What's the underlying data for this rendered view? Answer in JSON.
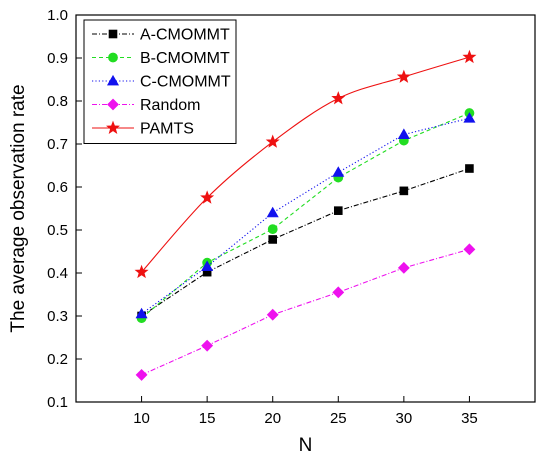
{
  "chart_data": {
    "type": "line",
    "title": "",
    "xlabel": "N",
    "ylabel": "The average observation rate",
    "x": [
      10,
      15,
      20,
      25,
      30,
      35
    ],
    "xlim": [
      5,
      40
    ],
    "ylim": [
      0.1,
      1.0
    ],
    "xticks": [
      10,
      15,
      20,
      25,
      30,
      35
    ],
    "yticks": [
      0.1,
      0.2,
      0.3,
      0.4,
      0.5,
      0.6,
      0.7,
      0.8,
      0.9,
      1.0
    ],
    "xtick_labels": [
      "10",
      "15",
      "20",
      "25",
      "30",
      "35"
    ],
    "ytick_labels": [
      "0.1",
      "0.2",
      "0.3",
      "0.4",
      "0.5",
      "0.6",
      "0.7",
      "0.8",
      "0.9",
      "1.0"
    ],
    "grid": false,
    "legend_position": "top-left",
    "series": [
      {
        "name": "A-CMOMMT",
        "values": [
          0.3,
          0.402,
          0.478,
          0.545,
          0.591,
          0.643
        ],
        "color": "#000000",
        "marker": "square",
        "line": "dot-dash"
      },
      {
        "name": "B-CMOMMT",
        "values": [
          0.295,
          0.424,
          0.502,
          0.622,
          0.708,
          0.772
        ],
        "color": "#22dd22",
        "marker": "circle",
        "line": "dashed"
      },
      {
        "name": "C-CMOMMT",
        "values": [
          0.305,
          0.415,
          0.54,
          0.634,
          0.722,
          0.76
        ],
        "color": "#1111ee",
        "marker": "triangle",
        "line": "dotted"
      },
      {
        "name": "Random",
        "values": [
          0.163,
          0.231,
          0.303,
          0.355,
          0.412,
          0.455
        ],
        "color": "#ee11ee",
        "marker": "diamond",
        "line": "dot-dash"
      },
      {
        "name": "PAMTS",
        "values": [
          0.402,
          0.575,
          0.705,
          0.806,
          0.856,
          0.902
        ],
        "color": "#ee1111",
        "marker": "star",
        "line": "solid-smooth"
      }
    ]
  }
}
